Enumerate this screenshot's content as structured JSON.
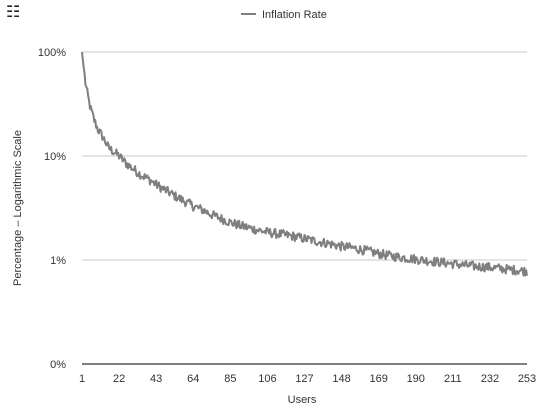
{
  "corner_glyph": "☷",
  "chart_data": {
    "type": "line",
    "title": "",
    "xlabel": "Users",
    "ylabel": "Percentage – Logarithmic Scale",
    "yscale": "log",
    "ylim_percent": [
      0.1,
      100
    ],
    "xlim": [
      1,
      253
    ],
    "x_ticks": [
      "1",
      "22",
      "43",
      "64",
      "85",
      "106",
      "127",
      "148",
      "169",
      "190",
      "211",
      "232",
      "253"
    ],
    "y_ticks": [
      {
        "label": "100%",
        "value": 100
      },
      {
        "label": "10%",
        "value": 10
      },
      {
        "label": "1%",
        "value": 1
      },
      {
        "label": "0%",
        "value": 0.1
      }
    ],
    "grid": "horizontal",
    "legend": "top-center",
    "series": [
      {
        "name": "Inflation Rate",
        "color": "#7f7f7f",
        "points": [
          [
            1,
            100
          ],
          [
            2,
            70
          ],
          [
            3,
            50
          ],
          [
            4,
            40
          ],
          [
            5,
            33
          ],
          [
            6,
            28
          ],
          [
            8,
            22
          ],
          [
            10,
            18
          ],
          [
            12,
            16
          ],
          [
            14,
            14
          ],
          [
            16,
            12
          ],
          [
            19,
            11
          ],
          [
            22,
            10
          ],
          [
            26,
            8.5
          ],
          [
            30,
            7.5
          ],
          [
            35,
            6.5
          ],
          [
            40,
            5.8
          ],
          [
            43,
            5.3
          ],
          [
            50,
            4.5
          ],
          [
            55,
            4.0
          ],
          [
            60,
            3.6
          ],
          [
            64,
            3.3
          ],
          [
            70,
            3.0
          ],
          [
            75,
            2.7
          ],
          [
            80,
            2.5
          ],
          [
            85,
            2.3
          ],
          [
            90,
            2.15
          ],
          [
            95,
            2.05
          ],
          [
            100,
            1.95
          ],
          [
            106,
            1.85
          ],
          [
            110,
            1.8
          ],
          [
            120,
            1.7
          ],
          [
            127,
            1.6
          ],
          [
            135,
            1.5
          ],
          [
            140,
            1.45
          ],
          [
            148,
            1.35
          ],
          [
            155,
            1.3
          ],
          [
            160,
            1.25
          ],
          [
            169,
            1.15
          ],
          [
            175,
            1.1
          ],
          [
            180,
            1.07
          ],
          [
            190,
            1.02
          ],
          [
            200,
            0.97
          ],
          [
            211,
            0.92
          ],
          [
            220,
            0.88
          ],
          [
            232,
            0.85
          ],
          [
            240,
            0.82
          ],
          [
            250,
            0.79
          ],
          [
            253,
            0.78
          ]
        ]
      }
    ]
  }
}
